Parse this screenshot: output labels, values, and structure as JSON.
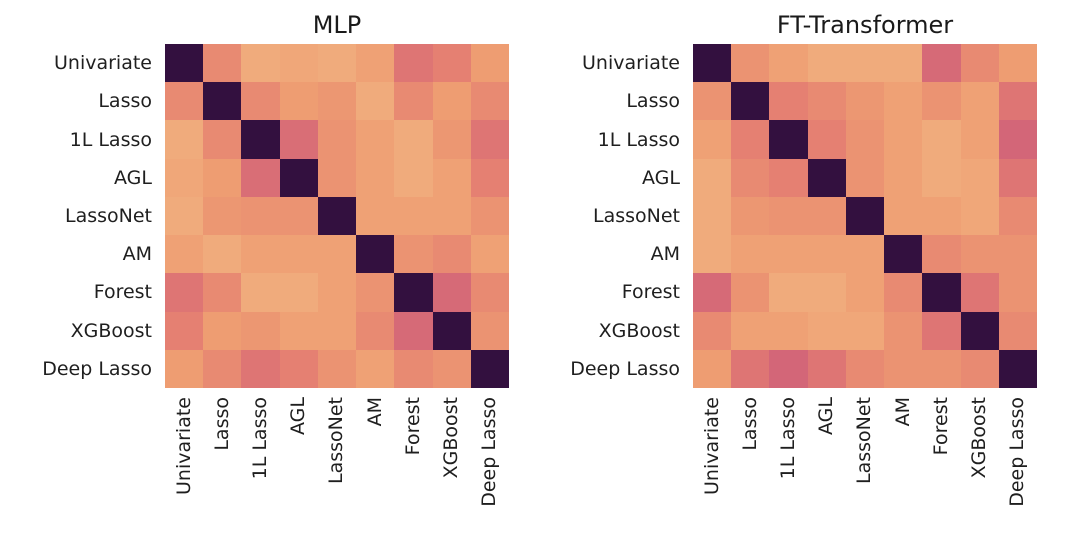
{
  "page": {
    "background": "#ffffff",
    "text_color": "#1f1f1f"
  },
  "colormap": {
    "name": "flare-like (light orange -> pink -> dark purple)",
    "stops": [
      [
        0.15,
        "#f4c68f"
      ],
      [
        0.35,
        "#ee9d72"
      ],
      [
        0.5,
        "#e58072"
      ],
      [
        0.65,
        "#cf5f79"
      ],
      [
        0.8,
        "#9c3d68"
      ],
      [
        1.0,
        "#33103f"
      ]
    ]
  },
  "chart_data": [
    {
      "type": "heatmap",
      "title": "MLP",
      "x_labels": [
        "Univariate",
        "Lasso",
        "1L Lasso",
        "AGL",
        "LassoNet",
        "AM",
        "Forest",
        "XGBoost",
        "Deep Lasso"
      ],
      "y_labels": [
        "Univariate",
        "Lasso",
        "1L Lasso",
        "AGL",
        "LassoNet",
        "AM",
        "Forest",
        "XGBoost",
        "Deep Lasso"
      ],
      "value_range": [
        0,
        1
      ],
      "legend": "none",
      "grid": false,
      "values": [
        [
          1.0,
          0.45,
          0.28,
          0.3,
          0.28,
          0.33,
          0.55,
          0.5,
          0.35
        ],
        [
          0.45,
          1.0,
          0.45,
          0.35,
          0.38,
          0.28,
          0.45,
          0.35,
          0.45
        ],
        [
          0.28,
          0.45,
          1.0,
          0.58,
          0.4,
          0.33,
          0.28,
          0.38,
          0.55
        ],
        [
          0.3,
          0.35,
          0.58,
          1.0,
          0.4,
          0.33,
          0.28,
          0.33,
          0.5
        ],
        [
          0.28,
          0.38,
          0.4,
          0.4,
          1.0,
          0.33,
          0.33,
          0.33,
          0.4
        ],
        [
          0.33,
          0.28,
          0.33,
          0.33,
          0.33,
          1.0,
          0.4,
          0.45,
          0.33
        ],
        [
          0.55,
          0.45,
          0.28,
          0.28,
          0.33,
          0.4,
          1.0,
          0.6,
          0.45
        ],
        [
          0.5,
          0.35,
          0.38,
          0.33,
          0.33,
          0.45,
          0.6,
          1.0,
          0.4
        ],
        [
          0.35,
          0.45,
          0.55,
          0.5,
          0.4,
          0.33,
          0.45,
          0.4,
          1.0
        ]
      ]
    },
    {
      "type": "heatmap",
      "title": "FT-Transformer",
      "x_labels": [
        "Univariate",
        "Lasso",
        "1L Lasso",
        "AGL",
        "LassoNet",
        "AM",
        "Forest",
        "XGBoost",
        "Deep Lasso"
      ],
      "y_labels": [
        "Univariate",
        "Lasso",
        "1L Lasso",
        "AGL",
        "LassoNet",
        "AM",
        "Forest",
        "XGBoost",
        "Deep Lasso"
      ],
      "value_range": [
        0,
        1
      ],
      "legend": "none",
      "grid": false,
      "values": [
        [
          1.0,
          0.4,
          0.33,
          0.28,
          0.28,
          0.28,
          0.6,
          0.45,
          0.35
        ],
        [
          0.4,
          1.0,
          0.5,
          0.45,
          0.38,
          0.33,
          0.4,
          0.33,
          0.55
        ],
        [
          0.33,
          0.5,
          1.0,
          0.5,
          0.4,
          0.33,
          0.28,
          0.33,
          0.62
        ],
        [
          0.28,
          0.45,
          0.5,
          1.0,
          0.4,
          0.33,
          0.28,
          0.3,
          0.55
        ],
        [
          0.28,
          0.38,
          0.4,
          0.4,
          1.0,
          0.33,
          0.33,
          0.3,
          0.45
        ],
        [
          0.28,
          0.33,
          0.33,
          0.33,
          0.33,
          1.0,
          0.45,
          0.4,
          0.4
        ],
        [
          0.6,
          0.4,
          0.28,
          0.28,
          0.33,
          0.45,
          1.0,
          0.55,
          0.4
        ],
        [
          0.45,
          0.33,
          0.33,
          0.3,
          0.3,
          0.4,
          0.55,
          1.0,
          0.45
        ],
        [
          0.35,
          0.55,
          0.62,
          0.55,
          0.45,
          0.4,
          0.4,
          0.45,
          1.0
        ]
      ]
    }
  ]
}
